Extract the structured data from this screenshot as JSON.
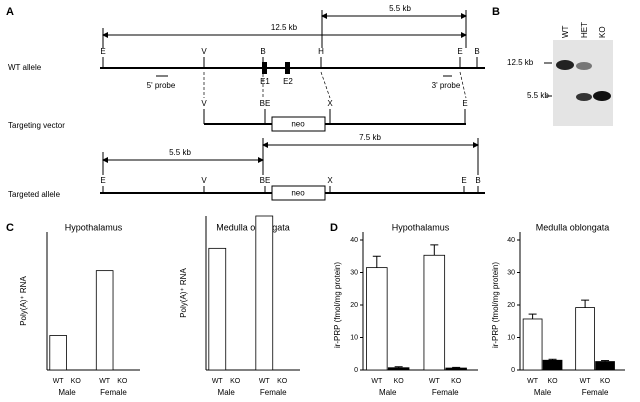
{
  "figure": {
    "panels": [
      "A",
      "B",
      "C",
      "D"
    ],
    "wt_allele": {
      "label": "WT allele",
      "sites": [
        "E",
        "V",
        "B",
        "H",
        "E",
        "B"
      ],
      "exons": [
        "E1",
        "E2"
      ],
      "probes": [
        "5' probe",
        "3' probe"
      ],
      "spans": [
        "12.5 kb",
        "5.5 kb"
      ]
    },
    "targeting_vector": {
      "label": "Targeting vector",
      "sites": [
        "V",
        "BE",
        "X",
        "E"
      ],
      "cassette": "neo"
    },
    "targeted_allele": {
      "label": "Targeted allele",
      "sites": [
        "E",
        "V",
        "BE",
        "X",
        "E",
        "B"
      ],
      "cassette": "neo",
      "spans": [
        "5.5 kb",
        "7.5 kb"
      ]
    },
    "blot": {
      "lanes": [
        "WT",
        "HET",
        "KO"
      ],
      "markers": [
        "12.5 kb",
        "5.5 kb"
      ]
    }
  },
  "chart_data": [
    {
      "type": "bar",
      "title": "Hypothalamus",
      "y_label": "Poly(A)⁺ RNA",
      "categories": [
        "Male",
        "Female"
      ],
      "series": [
        {
          "name": "WT",
          "color": "#ffffff",
          "values": [
            25,
            72
          ]
        },
        {
          "name": "KO",
          "color": "#000000",
          "values": [
            0,
            0
          ]
        }
      ],
      "ylim": [
        0,
        100
      ]
    },
    {
      "type": "bar",
      "title": "Medulla oblongata",
      "y_label": "Poly(A)⁺ RNA",
      "categories": [
        "Male",
        "Female"
      ],
      "series": [
        {
          "name": "WT",
          "color": "#ffffff",
          "values": [
            79,
            100
          ]
        },
        {
          "name": "KO",
          "color": "#000000",
          "values": [
            0,
            0
          ]
        }
      ],
      "ylim": [
        0,
        100
      ]
    },
    {
      "type": "bar",
      "title": "Hypothalamus",
      "y_label": "ir-PRP (fmol/mg protein)",
      "categories": [
        "Male",
        "Female"
      ],
      "series": [
        {
          "name": "WT",
          "color": "#ffffff",
          "values": [
            31.5,
            35.3
          ],
          "errors": [
            3.5,
            3.2
          ]
        },
        {
          "name": "KO",
          "color": "#000000",
          "values": [
            0.7,
            0.6
          ],
          "errors": [
            0.3,
            0.2
          ]
        }
      ],
      "ylim": [
        0,
        40
      ],
      "yticks": [
        0,
        10,
        20,
        30,
        40
      ]
    },
    {
      "type": "bar",
      "title": "Medulla oblongata",
      "y_label": "ir-PRP (fmol/mg protein)",
      "categories": [
        "Male",
        "Female"
      ],
      "series": [
        {
          "name": "WT",
          "color": "#ffffff",
          "values": [
            15.7,
            19.2
          ],
          "errors": [
            1.5,
            2.3
          ]
        },
        {
          "name": "KO",
          "color": "#000000",
          "values": [
            3,
            2.6
          ],
          "errors": [
            0.3,
            0.3
          ]
        }
      ],
      "ylim": [
        0,
        40
      ],
      "yticks": [
        0,
        10,
        20,
        30,
        40
      ]
    }
  ]
}
